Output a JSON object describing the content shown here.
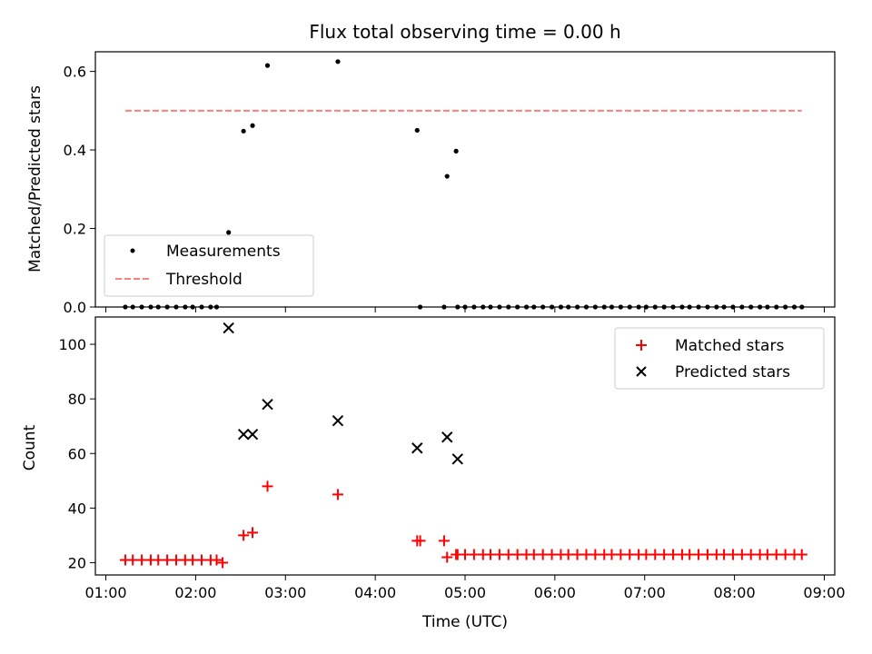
{
  "chart_data": [
    {
      "type": "scatter",
      "title": "Flux total observing time = 0.00 h",
      "ylabel": "Matched/Predicted stars",
      "xlabel": "",
      "ylim": [
        0,
        0.65
      ],
      "yticks": [
        0.0,
        0.2,
        0.4,
        0.6
      ],
      "ytick_labels": [
        "0.0",
        "0.2",
        "0.4",
        "0.6"
      ],
      "legend_position": "lower-left",
      "series": [
        {
          "name": "Measurements",
          "color": "#000000",
          "marker": "dot",
          "x": [
            "01:13",
            "01:18",
            "01:24",
            "01:30",
            "01:35",
            "01:41",
            "01:47",
            "01:53",
            "01:58",
            "02:04",
            "02:10",
            "02:14",
            "02:22",
            "02:32",
            "02:38",
            "02:48",
            "03:35",
            "04:28",
            "04:30",
            "04:46",
            "04:48",
            "04:54",
            "04:55",
            "05:00",
            "05:06",
            "05:12",
            "05:17",
            "05:23",
            "05:29",
            "05:35",
            "05:41",
            "05:46",
            "05:52",
            "05:58",
            "06:04",
            "06:09",
            "06:15",
            "06:21",
            "06:27",
            "06:33",
            "06:38",
            "06:44",
            "06:50",
            "06:56",
            "07:01",
            "07:07",
            "07:13",
            "07:19",
            "07:25",
            "07:30",
            "07:36",
            "07:42",
            "07:48",
            "07:53",
            "07:59",
            "08:05",
            "08:11",
            "08:17",
            "08:22",
            "08:28",
            "08:34",
            "08:40",
            "08:45"
          ],
          "y": [
            0,
            0,
            0,
            0,
            0,
            0,
            0,
            0,
            0,
            0,
            0,
            0,
            0.19,
            0.448,
            0.462,
            0.615,
            0.625,
            0.45,
            0,
            0,
            0.333,
            0.397,
            0,
            0,
            0,
            0,
            0,
            0,
            0,
            0,
            0,
            0,
            0,
            0,
            0,
            0,
            0,
            0,
            0,
            0,
            0,
            0,
            0,
            0,
            0,
            0,
            0,
            0,
            0,
            0,
            0,
            0,
            0,
            0,
            0,
            0,
            0,
            0,
            0,
            0,
            0,
            0,
            0
          ]
        },
        {
          "name": "Threshold",
          "color": "#ff7f7f",
          "style": "dashed",
          "x": [
            "01:13",
            "08:45"
          ],
          "y": [
            0.5,
            0.5
          ]
        }
      ]
    },
    {
      "type": "scatter",
      "xlabel": "Time (UTC)",
      "ylabel": "Count",
      "xlim": [
        "00:53",
        "09:07"
      ],
      "xticks": [
        "01:00",
        "02:00",
        "03:00",
        "04:00",
        "05:00",
        "06:00",
        "07:00",
        "08:00",
        "09:00"
      ],
      "ylim": [
        15.5,
        110
      ],
      "yticks": [
        20,
        40,
        60,
        80,
        100
      ],
      "ytick_labels": [
        "20",
        "40",
        "60",
        "80",
        "100"
      ],
      "legend_position": "upper-right",
      "series": [
        {
          "name": "Matched stars",
          "color": "#ff0000",
          "marker": "plus",
          "x": [
            "01:13",
            "01:18",
            "01:24",
            "01:30",
            "01:35",
            "01:41",
            "01:47",
            "01:53",
            "01:58",
            "02:04",
            "02:10",
            "02:14",
            "02:18",
            "02:32",
            "02:38",
            "02:48",
            "03:35",
            "04:28",
            "04:30",
            "04:46",
            "04:48",
            "04:54",
            "04:55",
            "05:00",
            "05:06",
            "05:12",
            "05:17",
            "05:23",
            "05:29",
            "05:35",
            "05:41",
            "05:46",
            "05:52",
            "05:58",
            "06:04",
            "06:09",
            "06:15",
            "06:21",
            "06:27",
            "06:33",
            "06:38",
            "06:44",
            "06:50",
            "06:56",
            "07:01",
            "07:07",
            "07:13",
            "07:19",
            "07:25",
            "07:30",
            "07:36",
            "07:42",
            "07:48",
            "07:53",
            "07:59",
            "08:05",
            "08:11",
            "08:17",
            "08:22",
            "08:28",
            "08:34",
            "08:40",
            "08:45"
          ],
          "y": [
            21,
            21,
            21,
            21,
            21,
            21,
            21,
            21,
            21,
            21,
            21,
            21,
            20,
            30,
            31,
            48,
            45,
            28,
            28,
            28,
            22,
            23,
            23,
            23,
            23,
            23,
            23,
            23,
            23,
            23,
            23,
            23,
            23,
            23,
            23,
            23,
            23,
            23,
            23,
            23,
            23,
            23,
            23,
            23,
            23,
            23,
            23,
            23,
            23,
            23,
            23,
            23,
            23,
            23,
            23,
            23,
            23,
            23,
            23,
            23,
            23,
            23,
            23
          ]
        },
        {
          "name": "Predicted stars",
          "color": "#000000",
          "marker": "x",
          "x": [
            "02:22",
            "02:32",
            "02:38",
            "02:48",
            "03:35",
            "04:28",
            "04:48",
            "04:55"
          ],
          "y": [
            106,
            67,
            67,
            78,
            72,
            62,
            66,
            58
          ]
        }
      ]
    }
  ]
}
